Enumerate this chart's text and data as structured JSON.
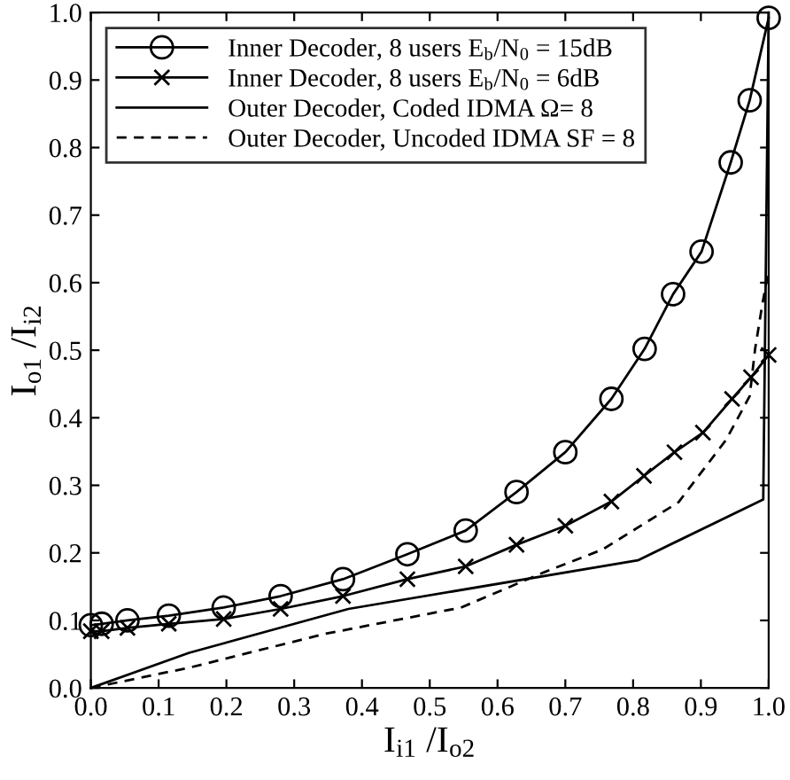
{
  "chart_data": {
    "type": "line",
    "xlabel": "I$_{i1}$ /I$_{o2}$",
    "ylabel": "I$_{o1}$ /I$_{i2}$",
    "xlim": [
      0,
      1
    ],
    "ylim": [
      0,
      1
    ],
    "xticks": [
      {
        "value": 0,
        "label": "0.0"
      },
      0.1,
      0.2,
      0.3,
      0.4,
      0.5,
      0.6,
      0.7,
      0.8,
      0.9,
      {
        "value": 1,
        "label": "1.0"
      }
    ],
    "yticks": [
      {
        "value": 0,
        "label": "0.0"
      },
      0.1,
      0.2,
      0.3,
      0.4,
      0.5,
      0.6,
      0.7,
      0.8,
      0.9,
      {
        "value": 1,
        "label": "1.0"
      }
    ],
    "grid": false,
    "legend": "top left",
    "series": [
      {
        "name": "Inner Decoder, 8 users E$_{b}$/N$_{0}$ = 15dB",
        "color": "#000000",
        "marker": "circle",
        "line_style": "solid",
        "x": [
          0,
          0.016,
          0.054,
          0.115,
          0.196,
          0.28,
          0.372,
          0.467,
          0.553,
          0.628,
          0.7,
          0.768,
          0.817,
          0.859,
          0.901,
          0.944,
          0.972,
          1.0
        ],
        "values": [
          0.093,
          0.095,
          0.1,
          0.107,
          0.119,
          0.136,
          0.161,
          0.198,
          0.233,
          0.29,
          0.349,
          0.428,
          0.502,
          0.583,
          0.646,
          0.778,
          0.87,
          0.992
        ]
      },
      {
        "name": "Inner Decoder, 8 users E$_{b}$/N$_{0}$ = 6dB",
        "color": "#000000",
        "marker": "cross",
        "line_style": "solid",
        "x": [
          0,
          0.016,
          0.054,
          0.115,
          0.196,
          0.28,
          0.372,
          0.467,
          0.553,
          0.628,
          0.7,
          0.768,
          0.816,
          0.861,
          0.903,
          0.946,
          0.974,
          1.0
        ],
        "values": [
          0.084,
          0.084,
          0.089,
          0.095,
          0.102,
          0.117,
          0.136,
          0.161,
          0.18,
          0.212,
          0.24,
          0.276,
          0.314,
          0.349,
          0.378,
          0.428,
          0.46,
          0.493
        ]
      },
      {
        "name": "Outer Decoder, Coded IDMA Ω= 8",
        "color": "#000000",
        "marker": "none",
        "line_style": "solid",
        "x": [
          0,
          0.145,
          0.38,
          0.807,
          0.992,
          1.0
        ],
        "values": [
          0,
          0.052,
          0.117,
          0.189,
          0.279,
          1.0
        ]
      },
      {
        "name": "Outer Decoder, Uncoded IDMA SF = 8",
        "color": "#000000",
        "marker": "none",
        "line_style": "dashed",
        "x": [
          0,
          0.145,
          0.345,
          0.546,
          0.668,
          0.755,
          0.867,
          0.937,
          0.972,
          0.98,
          0.99,
          1.0
        ],
        "values": [
          0,
          0.03,
          0.08,
          0.119,
          0.171,
          0.205,
          0.275,
          0.367,
          0.432,
          0.502,
          0.564,
          0.62
        ]
      }
    ]
  }
}
